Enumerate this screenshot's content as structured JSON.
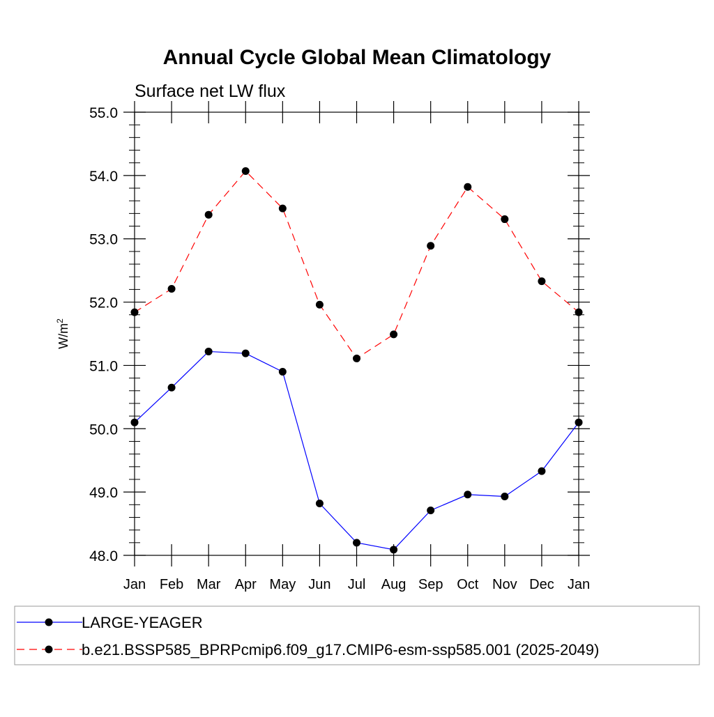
{
  "chart_data": {
    "type": "line",
    "title": "Annual Cycle Global Mean Climatology",
    "subtitle": "Surface net LW flux",
    "ylabel": "W/m",
    "ylabel_sup": "2",
    "xlabel": "",
    "ylim": [
      48.0,
      55.0
    ],
    "yticks": [
      "48.0",
      "49.0",
      "50.0",
      "51.0",
      "52.0",
      "53.0",
      "54.0",
      "55.0"
    ],
    "categories": [
      "Jan",
      "Feb",
      "Mar",
      "Apr",
      "May",
      "Jun",
      "Jul",
      "Aug",
      "Sep",
      "Oct",
      "Nov",
      "Dec",
      "Jan"
    ],
    "series": [
      {
        "name": "LARGE-YEAGER",
        "color": "#0000ff",
        "dash": "solid",
        "values": [
          50.1,
          50.65,
          51.22,
          51.19,
          50.9,
          48.82,
          48.2,
          48.09,
          48.71,
          48.96,
          48.93,
          49.33,
          50.1
        ]
      },
      {
        "name": "b.e21.BSSP585_BPRPcmip6.f09_g17.CMIP6-esm-ssp585.001 (2025-2049)",
        "color": "#ff0000",
        "dash": "dashed",
        "values": [
          51.84,
          52.21,
          53.38,
          54.07,
          53.48,
          51.96,
          51.11,
          51.49,
          52.89,
          53.82,
          53.31,
          52.33,
          51.84
        ]
      }
    ],
    "legend_position": "bottom",
    "grid": false
  }
}
